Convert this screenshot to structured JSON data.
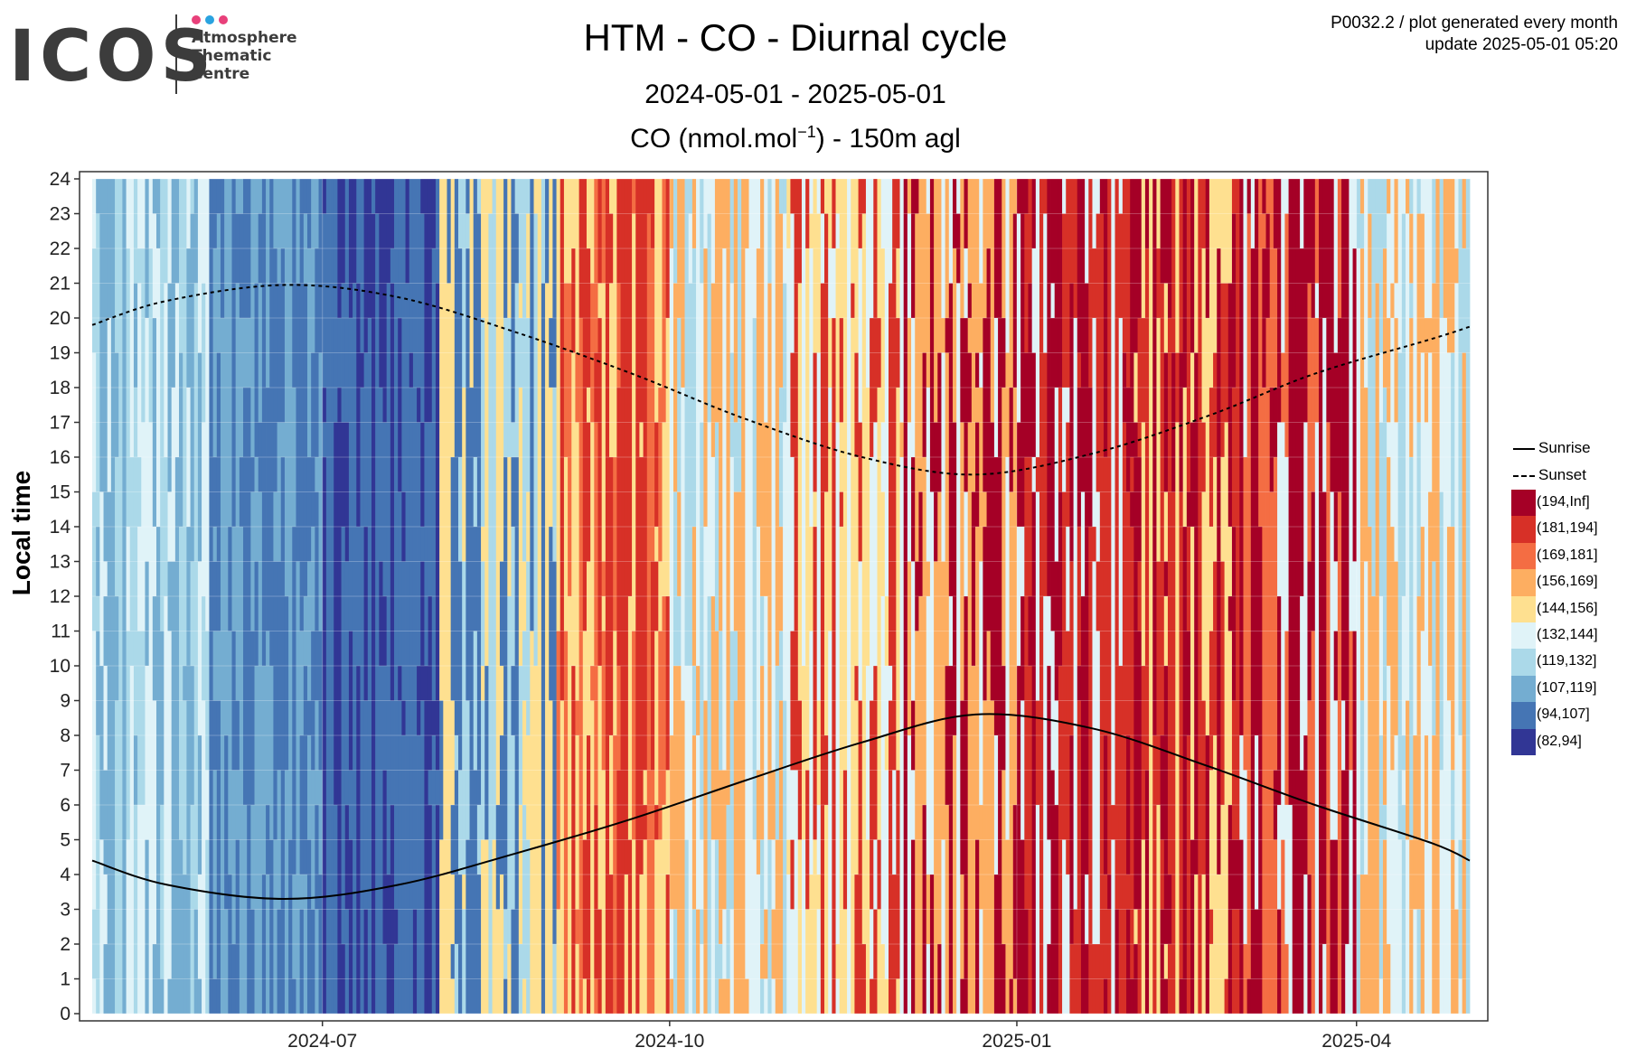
{
  "logo": {
    "wordmark": "ICOS",
    "lines": [
      "Atmosphere",
      "Thematic",
      "Centre"
    ],
    "dot_colors": [
      "#e8407a",
      "#2aa3e0",
      "#e8407a"
    ]
  },
  "header": {
    "title": "HTM - CO - Diurnal cycle",
    "date_range": "2024-05-01 - 2025-05-01",
    "unit_prefix": "CO (nmol.mol",
    "unit_exp": "−1",
    "unit_suffix": ") - 150m agl",
    "info_line1": "P0032.2 / plot generated every month",
    "info_line2": "update  2025-05-01 05:20"
  },
  "chart_data": {
    "type": "heatmap",
    "title": "HTM - CO - Diurnal cycle",
    "subtitle": "2024-05-01 - 2025-05-01",
    "variable_label": "CO (nmol.mol−1) - 150m agl",
    "ylabel": "Local time",
    "xlabel": "",
    "x_range": [
      "2024-05-01",
      "2025-05-01"
    ],
    "ylim": [
      0,
      24
    ],
    "y_ticks": [
      0,
      1,
      2,
      3,
      4,
      5,
      6,
      7,
      8,
      9,
      10,
      11,
      12,
      13,
      14,
      15,
      16,
      17,
      18,
      19,
      20,
      21,
      22,
      23,
      24
    ],
    "x_ticks": [
      {
        "date": "2024-07-01",
        "label": "2024-07"
      },
      {
        "date": "2024-10-01",
        "label": "2024-10"
      },
      {
        "date": "2025-01-01",
        "label": "2025-01"
      },
      {
        "date": "2025-04-01",
        "label": "2025-04"
      }
    ],
    "grid": true,
    "legend_position": "right",
    "color_bins": [
      {
        "label": "(194,Inf]",
        "color": "#a50026"
      },
      {
        "label": "(181,194]",
        "color": "#d73027"
      },
      {
        "label": "(169,181]",
        "color": "#f46d43"
      },
      {
        "label": "(156,169]",
        "color": "#fdae61"
      },
      {
        "label": "(144,156]",
        "color": "#fee090"
      },
      {
        "label": "(132,144]",
        "color": "#e0f3f8"
      },
      {
        "label": "(119,132]",
        "color": "#abd9e9"
      },
      {
        "label": "(107,119]",
        "color": "#74add1"
      },
      {
        "label": "(94,107]",
        "color": "#4575b4"
      },
      {
        "label": "(82,94]",
        "color": "#313695"
      }
    ],
    "daily_level_by_month": [
      {
        "month": "2024-05",
        "dominant_bins": [
          "(119,132]",
          "(107,119]",
          "(132,144]"
        ]
      },
      {
        "month": "2024-06",
        "dominant_bins": [
          "(94,107]",
          "(107,119]"
        ]
      },
      {
        "month": "2024-07",
        "dominant_bins": [
          "(94,107]",
          "(82,94]"
        ]
      },
      {
        "month": "2024-08",
        "dominant_bins": [
          "(94,107]",
          "(119,132]",
          "(144,156]"
        ]
      },
      {
        "month": "2024-09",
        "dominant_bins": [
          "(144,156]",
          "(169,181]",
          "(181,194]"
        ]
      },
      {
        "month": "2024-10",
        "dominant_bins": [
          "(119,132]",
          "(132,144]",
          "(156,169]"
        ]
      },
      {
        "month": "2024-11",
        "dominant_bins": [
          "(132,144]",
          "(144,156]",
          "(181,194]"
        ]
      },
      {
        "month": "2024-12",
        "dominant_bins": [
          "(132,144]",
          "(156,169]",
          "(194,Inf]"
        ]
      },
      {
        "month": "2025-01",
        "dominant_bins": [
          "(132,144]",
          "(181,194]",
          "(194,Inf]"
        ]
      },
      {
        "month": "2025-02",
        "dominant_bins": [
          "(144,156]",
          "(181,194]",
          "(194,Inf]"
        ]
      },
      {
        "month": "2025-03",
        "dominant_bins": [
          "(132,144]",
          "(169,181]",
          "(194,Inf]"
        ]
      },
      {
        "month": "2025-04",
        "dominant_bins": [
          "(119,132]",
          "(132,144]",
          "(156,169]"
        ]
      }
    ],
    "series": [
      {
        "name": "Sunrise",
        "style": "solid",
        "points": [
          {
            "date": "2024-05-01",
            "hour": 4.4
          },
          {
            "date": "2024-05-21",
            "hour": 3.7
          },
          {
            "date": "2024-06-21",
            "hour": 3.3
          },
          {
            "date": "2024-07-21",
            "hour": 3.7
          },
          {
            "date": "2024-08-21",
            "hour": 4.6
          },
          {
            "date": "2024-09-21",
            "hour": 5.6
          },
          {
            "date": "2024-10-21",
            "hour": 6.7
          },
          {
            "date": "2024-11-21",
            "hour": 7.8
          },
          {
            "date": "2024-12-21",
            "hour": 8.6
          },
          {
            "date": "2025-01-21",
            "hour": 8.2
          },
          {
            "date": "2025-02-21",
            "hour": 7.1
          },
          {
            "date": "2025-03-21",
            "hour": 6.0
          },
          {
            "date": "2025-04-21",
            "hour": 4.9
          },
          {
            "date": "2025-05-01",
            "hour": 4.4
          }
        ]
      },
      {
        "name": "Sunset",
        "style": "dashed",
        "points": [
          {
            "date": "2024-05-01",
            "hour": 19.8
          },
          {
            "date": "2024-05-21",
            "hour": 20.5
          },
          {
            "date": "2024-06-21",
            "hour": 20.95
          },
          {
            "date": "2024-07-21",
            "hour": 20.6
          },
          {
            "date": "2024-08-21",
            "hour": 19.6
          },
          {
            "date": "2024-09-21",
            "hour": 18.4
          },
          {
            "date": "2024-10-21",
            "hour": 17.1
          },
          {
            "date": "2024-11-21",
            "hour": 16.0
          },
          {
            "date": "2024-12-21",
            "hour": 15.5
          },
          {
            "date": "2025-01-21",
            "hour": 16.1
          },
          {
            "date": "2025-02-21",
            "hour": 17.2
          },
          {
            "date": "2025-03-21",
            "hour": 18.4
          },
          {
            "date": "2025-04-21",
            "hour": 19.4
          },
          {
            "date": "2025-05-01",
            "hour": 19.75
          }
        ]
      }
    ]
  }
}
